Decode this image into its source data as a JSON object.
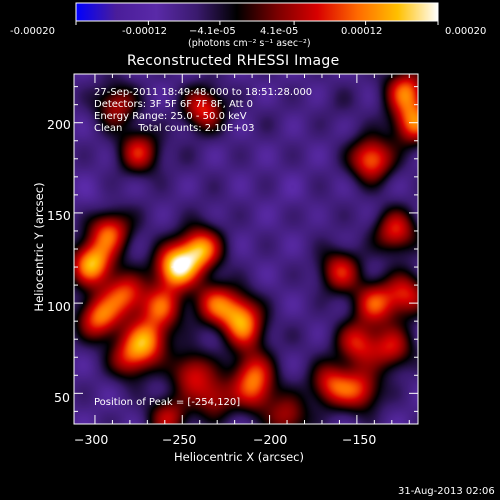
{
  "colorbar": {
    "colormap": "blue-purple-red-yellow-white",
    "colors": [
      "#0000ff",
      "#4a1d9a",
      "#5a2aa8",
      "#3a1a6e",
      "#000000",
      "#7a0000",
      "#d80000",
      "#ff6a00",
      "#ffc000",
      "#ffffff"
    ],
    "tick_labels": [
      "-0.00020",
      "-0.00012",
      "−4.1e-05",
      "4.1e-05",
      "0.00012",
      "0.00020"
    ],
    "units": "(photons cm⁻² s⁻¹ asec⁻²)"
  },
  "chart_data": {
    "type": "heatmap",
    "title": "Reconstructed RHESSI Image",
    "xlabel": "Heliocentric X (arcsec)",
    "ylabel": "Heliocentric Y (arcsec)",
    "xlim": [
      -312,
      -115
    ],
    "ylim": [
      33,
      227
    ],
    "x_ticks": [
      -300,
      -250,
      -200,
      -150
    ],
    "x_tick_labels": [
      "−300",
      "−250",
      "−200",
      "−150"
    ],
    "y_ticks": [
      50,
      100,
      150,
      200
    ],
    "y_tick_labels": [
      "50",
      "100",
      "150",
      "200"
    ],
    "value_range": [
      -0.0002,
      0.0002
    ],
    "grid": false,
    "annotations": [
      "27-Sep-2011 18:49:48.000 to 18:51:28.000",
      "Detectors: 3F 5F 6F 7F 8F, Att 0",
      "Energy Range: 25.0 - 50.0 keV",
      "Clean     Total counts: 2.10E+03"
    ],
    "peak_label": "Position of Peak = [-254,120]",
    "peak": {
      "x": -254,
      "y": 120,
      "value": 0.0002
    },
    "sources": [
      {
        "x": -254,
        "y": 120,
        "value": 0.0002
      },
      {
        "x": -240,
        "y": 130,
        "value": 0.00016
      },
      {
        "x": -302,
        "y": 122,
        "value": 0.00017
      },
      {
        "x": -292,
        "y": 140,
        "value": 0.00012
      },
      {
        "x": -298,
        "y": 92,
        "value": 0.00013
      },
      {
        "x": -283,
        "y": 105,
        "value": 0.00011
      },
      {
        "x": -270,
        "y": 80,
        "value": 0.00012
      },
      {
        "x": -280,
        "y": 70,
        "value": 9e-05
      },
      {
        "x": -262,
        "y": 98,
        "value": 0.0001
      },
      {
        "x": -232,
        "y": 100,
        "value": 9e-05
      },
      {
        "x": -238,
        "y": 208,
        "value": 0.0001
      },
      {
        "x": -275,
        "y": 184,
        "value": 9e-05
      },
      {
        "x": -288,
        "y": 210,
        "value": 7e-05
      },
      {
        "x": -218,
        "y": 95,
        "value": 8e-05
      },
      {
        "x": -214,
        "y": 85,
        "value": 7e-05
      },
      {
        "x": -210,
        "y": 62,
        "value": 8e-05
      },
      {
        "x": -245,
        "y": 62,
        "value": 8e-05
      },
      {
        "x": -232,
        "y": 48,
        "value": 7e-05
      },
      {
        "x": -258,
        "y": 37,
        "value": 7e-05
      },
      {
        "x": -208,
        "y": 50,
        "value": 6e-05
      },
      {
        "x": -142,
        "y": 180,
        "value": 0.00014
      },
      {
        "x": -118,
        "y": 200,
        "value": 0.00013
      },
      {
        "x": -122,
        "y": 218,
        "value": 0.00012
      },
      {
        "x": -128,
        "y": 140,
        "value": 0.0001
      },
      {
        "x": -160,
        "y": 118,
        "value": 9e-05
      },
      {
        "x": -140,
        "y": 100,
        "value": 0.0001
      },
      {
        "x": -122,
        "y": 105,
        "value": 9e-05
      },
      {
        "x": -150,
        "y": 78,
        "value": 9e-05
      },
      {
        "x": -130,
        "y": 75,
        "value": 8e-05
      },
      {
        "x": -165,
        "y": 55,
        "value": 0.0001
      },
      {
        "x": -148,
        "y": 52,
        "value": 9e-05
      },
      {
        "x": -190,
        "y": 37,
        "value": 7e-05
      },
      {
        "x": -200,
        "y": 203,
        "value": -5e-05
      },
      {
        "x": -180,
        "y": 188,
        "value": -6e-05
      },
      {
        "x": -188,
        "y": 160,
        "value": -7e-05
      },
      {
        "x": -300,
        "y": 155,
        "value": -8e-05
      },
      {
        "x": -218,
        "y": 135,
        "value": -6e-05
      },
      {
        "x": -195,
        "y": 115,
        "value": -6e-05
      },
      {
        "x": -170,
        "y": 150,
        "value": -5e-05
      },
      {
        "x": -200,
        "y": 37,
        "value": -7e-05
      },
      {
        "x": -270,
        "y": 150,
        "value": -5e-05
      },
      {
        "x": -250,
        "y": 180,
        "value": -5e-05
      },
      {
        "x": -235,
        "y": 155,
        "value": -5e-05
      },
      {
        "x": -185,
        "y": 80,
        "value": -5e-05
      },
      {
        "x": -160,
        "y": 210,
        "value": -4e-05
      }
    ]
  },
  "footer": {
    "timestamp": "31-Aug-2013 02:06"
  }
}
